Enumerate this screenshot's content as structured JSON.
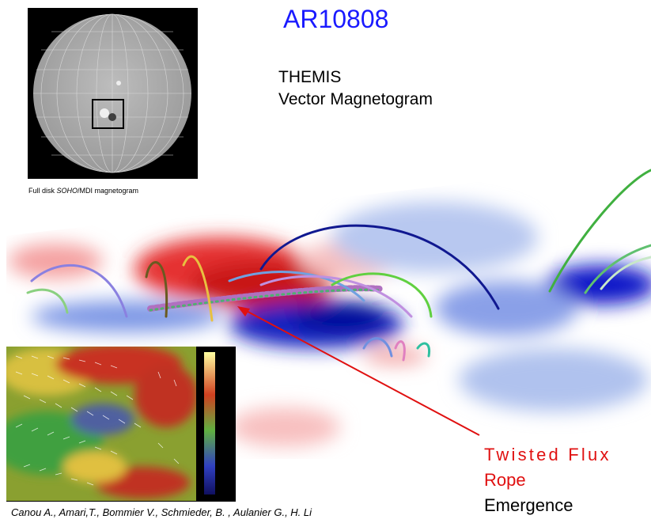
{
  "title": "AR10808",
  "instrument": {
    "line1": "THEMIS",
    "line2": "Vector Magnetogram"
  },
  "disk_caption": {
    "before": "Full disk ",
    "italic": "SOHO",
    "after": "/MDI magnetogram"
  },
  "annotation": {
    "line1": "Twisted Flux",
    "line2": "Rope",
    "line3": "Emergence"
  },
  "citation": "Canou A.,  Amari,T.,  Bommier V.,  Schmieder, B. ,  Aulanier G.,  H. Li"
}
